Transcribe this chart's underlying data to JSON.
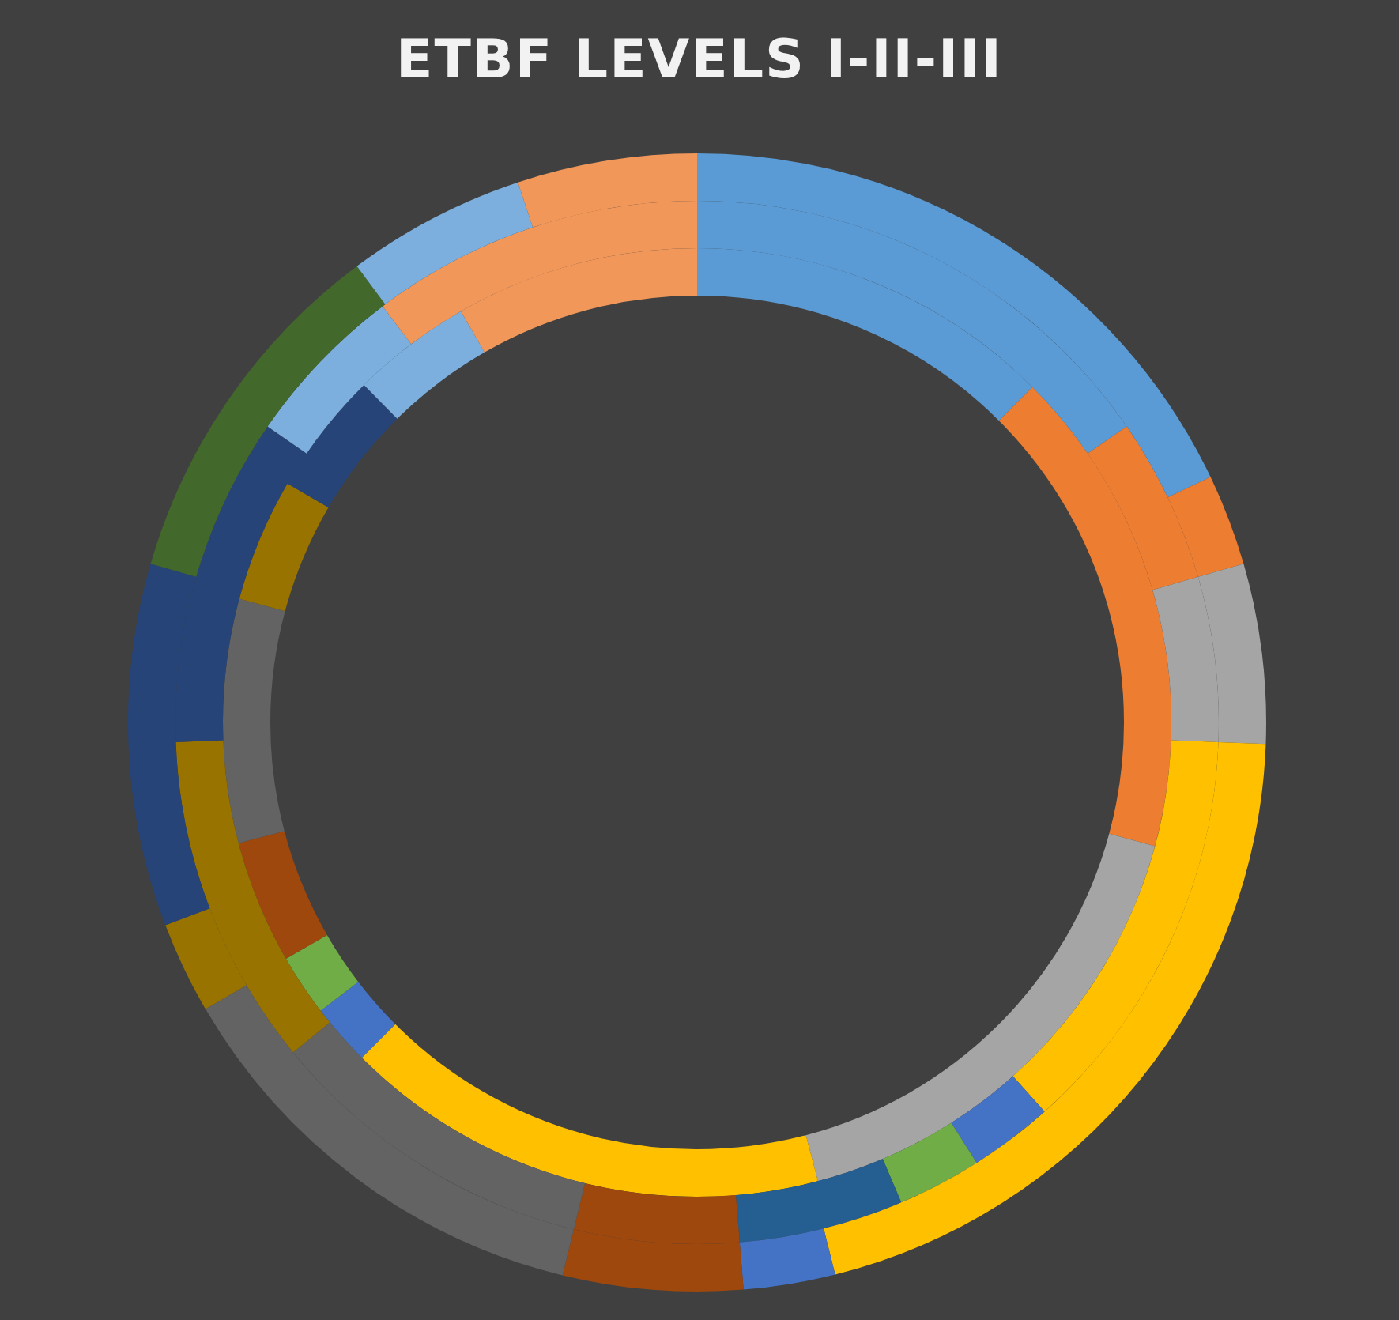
{
  "chart_data": {
    "type": "donut",
    "title": "ETBF LEVELS I-II-III",
    "legend": false,
    "series": [
      {
        "values": [
          12.5,
          16.7,
          16.7,
          16.6,
          2.1,
          2.1,
          4.2,
          8.3,
          4.2,
          4.2,
          4.1,
          8.3
        ],
        "colors": [
          "#5b9bd5",
          "#ed7d31",
          "#a5a5a5",
          "#ffc000",
          "#4472c4",
          "#70ad47",
          "#9e480e",
          "#636363",
          "#997300",
          "#264478",
          "#7cafdd",
          "#f1975a"
        ]
      },
      {
        "values": [
          15.4,
          5.1,
          5.1,
          12.8,
          2.6,
          2.6,
          5.1,
          5.1,
          10.3,
          10.3,
          10.2,
          5.1,
          10.3
        ],
        "colors": [
          "#5b9bd5",
          "#ed7d31",
          "#a5a5a5",
          "#ffc000",
          "#4472c4",
          "#70ad47",
          "#255e91",
          "#9e480e",
          "#636363",
          "#997300",
          "#264478",
          "#7cafdd",
          "#f1975a"
        ]
      },
      {
        "values": [
          17.9,
          2.6,
          5.1,
          20.5,
          2.6,
          5.1,
          12.8,
          2.6,
          10.3,
          10.3,
          5.1,
          5.1
        ],
        "colors": [
          "#5b9bd5",
          "#ed7d31",
          "#a5a5a5",
          "#ffc000",
          "#4472c4",
          "#9e480e",
          "#636363",
          "#997300",
          "#264478",
          "#43682b",
          "#7cafdd",
          "#f1975a"
        ]
      }
    ]
  }
}
